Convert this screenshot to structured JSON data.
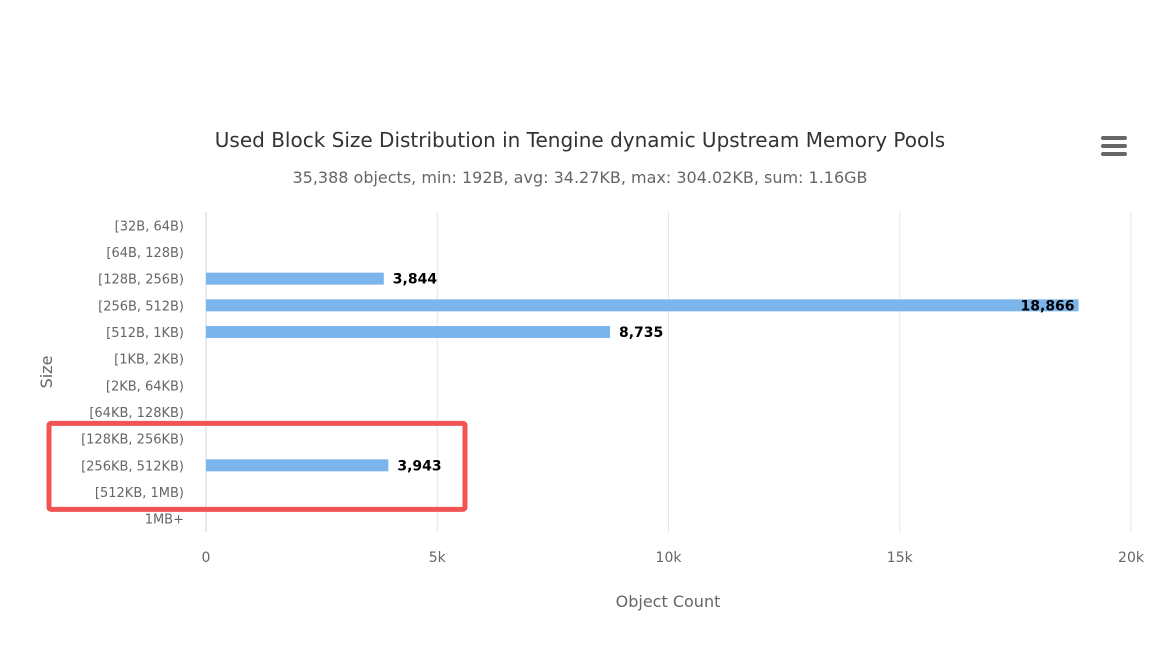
{
  "chart_data": {
    "type": "bar",
    "orientation": "horizontal",
    "title": "Used Block Size Distribution in Tengine dynamic Upstream Memory Pools",
    "subtitle": "35,388 objects, min: 192B, avg: 34.27KB, max: 304.02KB, sum: 1.16GB",
    "xlabel": "Object Count",
    "ylabel": "Size",
    "categories": [
      "[32B, 64B)",
      "[64B, 128B)",
      "[128B, 256B)",
      "[256B, 512B)",
      "[512B, 1KB)",
      "[1KB, 2KB)",
      "[2KB, 64KB)",
      "[64KB, 128KB)",
      "[128KB, 256KB)",
      "[256KB, 512KB)",
      "[512KB, 1MB)",
      "1MB+"
    ],
    "values": [
      0,
      0,
      3844,
      18866,
      8735,
      0,
      0,
      0,
      0,
      3943,
      0,
      0
    ],
    "data_labels": [
      "",
      "",
      "3,844",
      "18,866",
      "8,735",
      "",
      "",
      "",
      "",
      "3,943",
      "",
      ""
    ],
    "xlim": [
      0,
      20000
    ],
    "xticks": [
      0,
      5000,
      10000,
      15000,
      20000
    ],
    "xtick_labels": [
      "0",
      "5k",
      "10k",
      "15k",
      "20k"
    ],
    "grid": true,
    "legend": "none",
    "bar_color": "#7cb5ec",
    "highlight_box": {
      "color": "#f25454",
      "categories": [
        "[128KB, 256KB)",
        "[256KB, 512KB)",
        "[512KB, 1MB)"
      ]
    }
  },
  "menu": {
    "icon": "hamburger-menu-icon"
  }
}
